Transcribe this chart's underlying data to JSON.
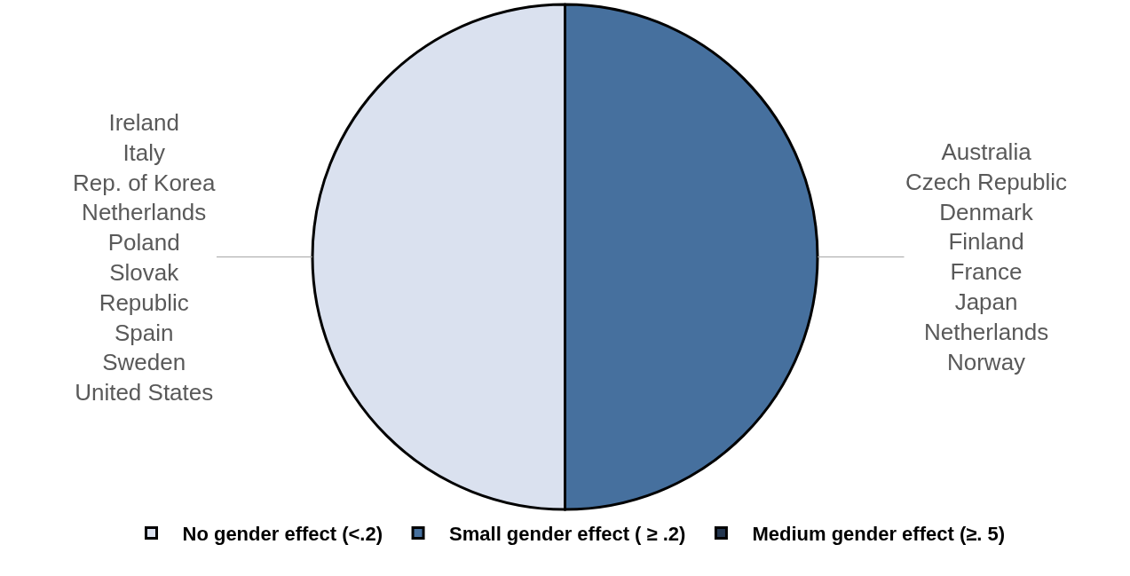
{
  "chart_data": {
    "type": "pie",
    "categories": [
      "No gender effect (<.2)",
      "Small gender effect ( ≥ .2)",
      "Medium gender effect (≥. 5)"
    ],
    "values": [
      50,
      50,
      0
    ],
    "colors": [
      "#dae1ef",
      "#46709e",
      "#23364f"
    ],
    "annotations": [
      "Ireland\nItaly\nRep. of Korea\nNetherlands\nPoland\nSlovak\nRepublic\nSpain\nSweden\nUnited States",
      "Australia\nCzech Republic\nDenmark\nFinland\nFrance\nJapan\nNetherlands\nNorway"
    ],
    "legend": "bottom"
  }
}
